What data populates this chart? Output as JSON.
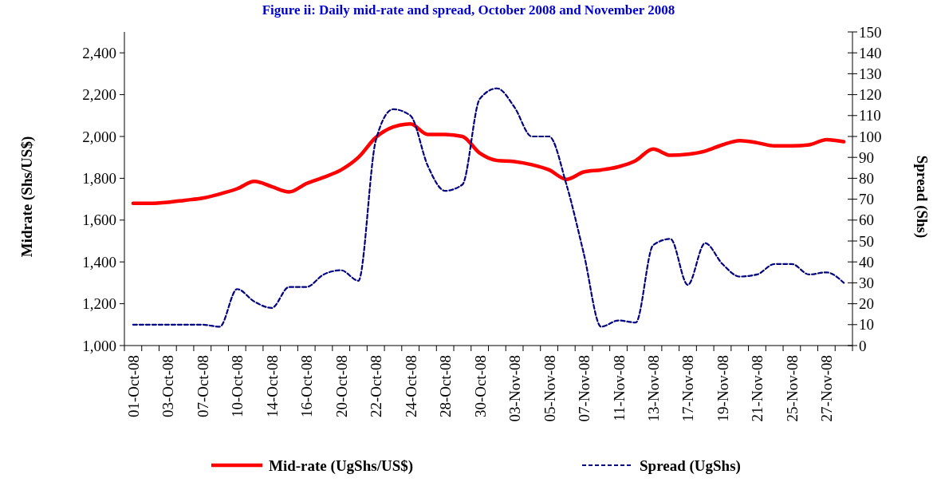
{
  "chart_data": {
    "type": "line",
    "title": "Figure ii: Daily mid-rate and spread, October 2008 and November 2008",
    "ylabel": "Midrate (Shs/US$)",
    "y2label": "Spread (Shs)",
    "categories": [
      "01-Oct-08",
      null,
      "03-Oct-08",
      null,
      "07-Oct-08",
      null,
      "10-Oct-08",
      null,
      "14-Oct-08",
      null,
      "16-Oct-08",
      null,
      "20-Oct-08",
      null,
      "22-Oct-08",
      null,
      "24-Oct-08",
      null,
      "28-Oct-08",
      null,
      "30-Oct-08",
      null,
      "03-Nov-08",
      null,
      "05-Nov-08",
      null,
      "07-Nov-08",
      null,
      "11-Nov-08",
      null,
      "13-Nov-08",
      null,
      "17-Nov-08",
      null,
      "19-Nov-08",
      null,
      "21-Nov-08",
      null,
      "25-Nov-08",
      null,
      "27-Nov-08",
      null
    ],
    "series": [
      {
        "name": "Mid-rate (UgShs/US$)",
        "color": "#ff0000",
        "line_style": "solid",
        "values": [
          1680,
          1680,
          1685,
          1695,
          1705,
          1725,
          1750,
          1785,
          1760,
          1735,
          1775,
          1805,
          1840,
          1900,
          1995,
          2045,
          2060,
          2010,
          2010,
          2000,
          1920,
          1885,
          1880,
          1865,
          1840,
          1795,
          1830,
          1840,
          1855,
          1885,
          1940,
          1910,
          1915,
          1930,
          1960,
          1980,
          1970,
          1955,
          1955,
          1960,
          1985,
          1975
        ]
      },
      {
        "name": "Spread (UgShs)",
        "color": "#000080",
        "line_style": "dashed",
        "axis": "y2",
        "values": [
          10,
          10,
          10,
          10,
          10,
          9,
          27,
          21,
          18,
          28,
          28,
          34,
          36,
          31,
          98,
          113,
          110,
          86,
          74,
          77,
          118,
          123,
          114,
          100,
          100,
          77,
          44,
          9,
          12,
          11,
          48,
          51,
          29,
          49,
          39,
          33,
          34,
          39,
          39,
          34,
          35,
          30
        ]
      }
    ],
    "ylim": [
      1000,
      2500
    ],
    "yticks": [
      {
        "value": 1000,
        "label": "1,000"
      },
      {
        "value": 1200,
        "label": "1,200"
      },
      {
        "value": 1400,
        "label": "1,400"
      },
      {
        "value": 1600,
        "label": "1,600"
      },
      {
        "value": 1800,
        "label": "1,800"
      },
      {
        "value": 2000,
        "label": "2,000"
      },
      {
        "value": 2200,
        "label": "2,200"
      },
      {
        "value": 2400,
        "label": "2,400"
      }
    ],
    "y2lim": [
      0,
      150
    ],
    "y2ticks": [
      0,
      10,
      20,
      30,
      40,
      50,
      60,
      70,
      80,
      90,
      100,
      110,
      120,
      130,
      140,
      150
    ],
    "grid": false,
    "legend": "bottom",
    "marker": "none"
  }
}
